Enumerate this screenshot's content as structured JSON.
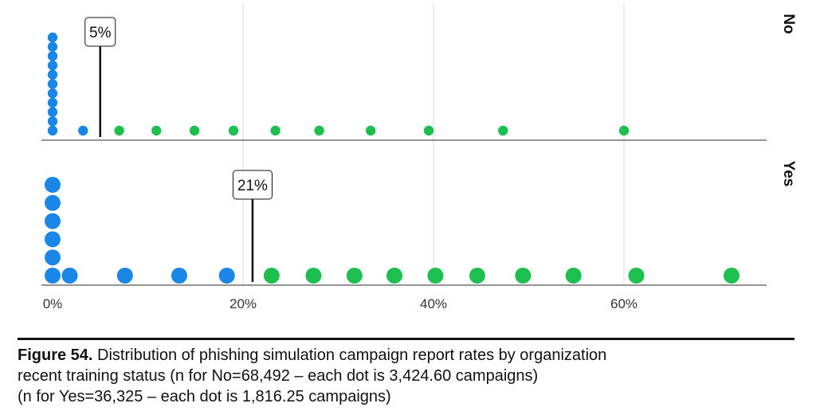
{
  "caption": {
    "figure_label": "Figure 54.",
    "line1": " Distribution of phishing simulation campaign report rates by organization",
    "line2": "recent training status (n for No=68,492 – each dot is 3,424.60 campaigns)",
    "line3": "(n for Yes=36,325 – each dot is 1,816.25 campaigns)"
  },
  "chart_data": {
    "type": "scatter",
    "subtype": "dot plot (faceted)",
    "xlabel": "",
    "ylabel": "",
    "x_ticks": [
      "0%",
      "20%",
      "40%",
      "60%"
    ],
    "x_tick_values": [
      0,
      20,
      40,
      60
    ],
    "xlim": [
      0,
      75
    ],
    "grid": "vertical",
    "facets": [
      {
        "label": "No",
        "annotation": {
          "label": "5%",
          "value": 5
        },
        "series": [
          {
            "color": "#1a86e8",
            "points": [
              [
                0,
                1
              ],
              [
                0,
                2
              ],
              [
                0,
                3
              ],
              [
                0,
                4
              ],
              [
                0,
                5
              ],
              [
                0,
                6
              ],
              [
                0,
                7
              ],
              [
                0,
                8
              ],
              [
                0,
                9
              ],
              [
                0,
                10
              ],
              [
                0,
                11
              ],
              [
                3.2,
                1
              ]
            ]
          },
          {
            "color": "#1dbf4e",
            "points": [
              [
                7,
                1
              ],
              [
                10.9,
                1
              ],
              [
                14.9,
                1
              ],
              [
                19,
                1
              ],
              [
                23.4,
                1
              ],
              [
                28,
                1
              ],
              [
                33.4,
                1
              ],
              [
                39.5,
                1
              ],
              [
                47.3,
                1
              ],
              [
                60,
                1
              ]
            ]
          }
        ]
      },
      {
        "label": "Yes",
        "annotation": {
          "label": "21%",
          "value": 21
        },
        "series": [
          {
            "color": "#1a86e8",
            "points": [
              [
                0,
                1
              ],
              [
                0,
                2
              ],
              [
                0,
                3
              ],
              [
                0,
                4
              ],
              [
                0,
                5
              ],
              [
                0,
                6
              ],
              [
                1.8,
                1
              ],
              [
                7.6,
                1
              ],
              [
                13.3,
                1
              ],
              [
                18.3,
                1
              ]
            ]
          },
          {
            "color": "#1dbf4e",
            "points": [
              [
                23,
                1
              ],
              [
                27.4,
                1
              ],
              [
                31.7,
                1
              ],
              [
                35.9,
                1
              ],
              [
                40.2,
                1
              ],
              [
                44.6,
                1
              ],
              [
                49.4,
                1
              ],
              [
                54.7,
                1
              ],
              [
                61.3,
                1
              ],
              [
                71.3,
                1
              ]
            ]
          }
        ]
      }
    ]
  }
}
